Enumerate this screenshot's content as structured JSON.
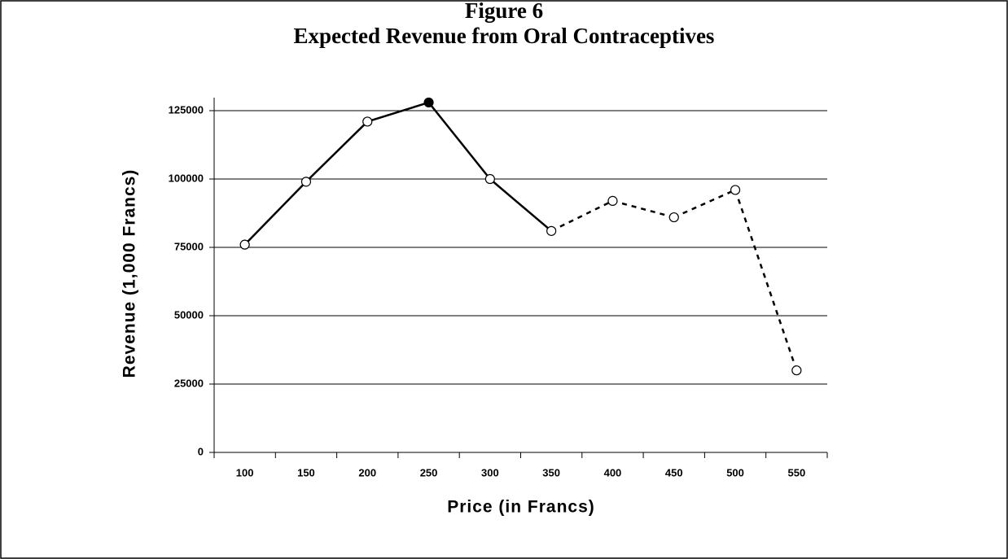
{
  "chart_data": {
    "type": "line",
    "title": "Figure 6",
    "subtitle": "Expected Revenue from Oral Contraceptives",
    "x_label": "Price (in Francs)",
    "y_label": "Revenue (1,000 Francs)",
    "categories": [
      "100",
      "150",
      "200",
      "250",
      "300",
      "350",
      "400",
      "450",
      "500",
      "550"
    ],
    "values": [
      76000,
      99000,
      121000,
      128000,
      100000,
      81000,
      92000,
      86000,
      96000,
      30000
    ],
    "color": "#000000",
    "segment_styles": [
      "solid",
      "solid",
      "solid",
      "solid",
      "solid",
      "dashed",
      "dashed",
      "dashed",
      "dashed"
    ],
    "marker_fills": [
      "#ffffff",
      "#ffffff",
      "#ffffff",
      "#000000",
      "#ffffff",
      "#ffffff",
      "#ffffff",
      "#ffffff",
      "#ffffff",
      "#ffffff"
    ],
    "ylim": [
      0,
      125000
    ],
    "yticks": [
      0,
      25000,
      50000,
      75000,
      100000,
      125000
    ],
    "grid": true
  }
}
